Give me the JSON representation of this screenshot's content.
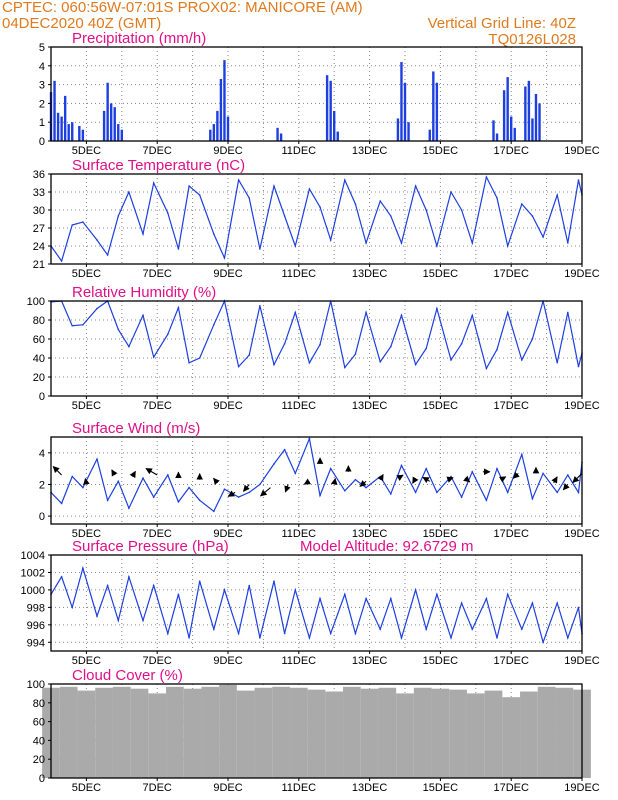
{
  "header": {
    "line1": "CPTEC:   060:56W-07:01S   PROX02: MANICORE (AM)",
    "line2_left": "04DEC2020 40Z (GMT)",
    "line2_right": "Vertical Grid Line: 40Z",
    "line3_right": "TQ0126L028"
  },
  "colors": {
    "header": "#e07a1e",
    "title": "#e0108a",
    "line": "#1d3fe0",
    "bar": "#1d3fe0",
    "cloud": "#aaaaaa",
    "wind_arrow": "#000000"
  },
  "x_axis": {
    "labels": [
      "5DEC",
      "7DEC",
      "9DEC",
      "11DEC",
      "13DEC",
      "15DEC",
      "17DEC",
      "19DEC"
    ]
  },
  "chart_data": [
    {
      "type": "bar",
      "title": "Precipitation (mm/h)",
      "ylim": [
        0,
        5
      ],
      "yticks": [
        "0",
        "1",
        "2",
        "3",
        "4",
        "5"
      ],
      "series": [
        {
          "x": [
            4.0,
            4.1,
            4.2,
            4.3,
            4.4,
            4.5,
            4.6,
            4.8,
            4.9,
            5.5,
            5.6,
            5.7,
            5.8,
            5.9,
            6.0,
            8.5,
            8.6,
            8.7,
            8.8,
            8.9,
            9.0,
            10.4,
            10.5,
            11.8,
            11.9,
            12.0,
            12.1,
            13.8,
            13.9,
            14.0,
            14.1,
            14.7,
            14.8,
            14.9,
            16.5,
            16.6,
            16.8,
            16.9,
            17.0,
            17.1,
            17.4,
            17.5,
            17.6,
            17.7,
            17.8
          ],
          "values": [
            2.6,
            3.2,
            1.5,
            1.3,
            2.4,
            0.9,
            1.0,
            0.8,
            0.6,
            1.6,
            3.1,
            2.0,
            1.8,
            0.9,
            0.6,
            0.6,
            0.9,
            1.6,
            3.3,
            4.3,
            1.3,
            0.7,
            0.4,
            3.5,
            3.2,
            1.6,
            0.5,
            1.2,
            4.2,
            3.1,
            1.0,
            0.6,
            3.7,
            3.1,
            1.1,
            0.4,
            2.7,
            3.4,
            1.3,
            0.7,
            2.9,
            3.2,
            1.2,
            2.5,
            2.0
          ]
        }
      ]
    },
    {
      "type": "line",
      "title": "Surface Temperature (nC)",
      "ylim": [
        21,
        36
      ],
      "yticks": [
        "21",
        "24",
        "27",
        "30",
        "33",
        "36"
      ],
      "series": [
        {
          "x": [
            4.0,
            4.3,
            4.6,
            4.9,
            5.3,
            5.6,
            5.9,
            6.2,
            6.6,
            6.9,
            7.3,
            7.6,
            7.9,
            8.2,
            8.6,
            8.9,
            9.3,
            9.6,
            9.9,
            10.3,
            10.6,
            10.9,
            11.3,
            11.6,
            11.9,
            12.3,
            12.6,
            12.9,
            13.3,
            13.6,
            13.9,
            14.3,
            14.6,
            14.9,
            15.3,
            15.6,
            15.9,
            16.3,
            16.6,
            16.9,
            17.3,
            17.6,
            17.9,
            18.3,
            18.6,
            18.9,
            19.0
          ],
          "values": [
            24.0,
            21.5,
            27.5,
            28.0,
            25.0,
            22.5,
            29.0,
            33.0,
            26.0,
            34.5,
            29.5,
            23.5,
            34.0,
            32.5,
            26.0,
            22.0,
            35.0,
            32.0,
            23.5,
            34.0,
            29.0,
            24.0,
            33.5,
            30.5,
            25.0,
            35.0,
            31.0,
            24.5,
            31.5,
            29.0,
            24.5,
            34.0,
            30.0,
            24.0,
            33.0,
            30.0,
            24.5,
            35.5,
            32.0,
            24.0,
            31.0,
            29.0,
            25.5,
            32.5,
            24.5,
            35.0,
            32.5
          ]
        }
      ]
    },
    {
      "type": "line",
      "title": "Relative Humidity (%)",
      "ylim": [
        0,
        100
      ],
      "yticks": [
        "0",
        "20",
        "40",
        "60",
        "80",
        "100"
      ],
      "series": [
        {
          "x": [
            4.0,
            4.3,
            4.6,
            4.9,
            5.3,
            5.6,
            5.9,
            6.2,
            6.6,
            6.9,
            7.3,
            7.6,
            7.9,
            8.2,
            8.6,
            8.9,
            9.3,
            9.6,
            9.9,
            10.3,
            10.6,
            10.9,
            11.3,
            11.6,
            11.9,
            12.3,
            12.6,
            12.9,
            13.3,
            13.6,
            13.9,
            14.3,
            14.6,
            14.9,
            15.3,
            15.6,
            15.9,
            16.3,
            16.6,
            16.9,
            17.3,
            17.6,
            17.9,
            18.3,
            18.6,
            18.9,
            19.0
          ],
          "values": [
            99.0,
            100.0,
            74.0,
            75.0,
            92.0,
            100.0,
            70.0,
            52.0,
            85.0,
            41.0,
            65.0,
            93.0,
            35.0,
            40.0,
            75.0,
            100.0,
            31.0,
            43.0,
            95.0,
            33.0,
            55.0,
            88.0,
            35.0,
            54.0,
            100.0,
            30.0,
            44.0,
            88.0,
            36.0,
            52.0,
            85.0,
            33.0,
            50.0,
            92.0,
            38.0,
            55.0,
            85.0,
            29.0,
            49.0,
            88.0,
            38.0,
            60.0,
            100.0,
            35.0,
            88.0,
            31.0,
            45.0
          ]
        }
      ]
    },
    {
      "type": "line",
      "title": "Surface Wind (m/s)",
      "ylim": [
        -0.5,
        5.0
      ],
      "yticks": [
        "0",
        "2",
        "4"
      ],
      "series": [
        {
          "x": [
            4.0,
            4.3,
            4.6,
            4.9,
            5.3,
            5.6,
            5.9,
            6.2,
            6.6,
            6.9,
            7.3,
            7.6,
            7.9,
            8.2,
            8.6,
            8.9,
            9.3,
            9.6,
            9.9,
            10.3,
            10.6,
            10.9,
            11.3,
            11.6,
            11.9,
            12.3,
            12.6,
            12.9,
            13.3,
            13.6,
            13.9,
            14.3,
            14.6,
            14.9,
            15.3,
            15.6,
            15.9,
            16.3,
            16.6,
            16.9,
            17.3,
            17.6,
            17.9,
            18.3,
            18.6,
            18.9,
            19.0
          ],
          "values": [
            1.5,
            0.8,
            2.5,
            1.8,
            3.6,
            1.0,
            2.2,
            0.5,
            2.4,
            1.2,
            2.6,
            0.9,
            1.8,
            1.0,
            0.3,
            1.7,
            1.2,
            1.5,
            2.0,
            3.3,
            4.2,
            2.7,
            4.9,
            1.3,
            3.0,
            1.6,
            2.3,
            1.8,
            2.5,
            1.4,
            3.2,
            1.5,
            3.0,
            1.5,
            2.5,
            1.2,
            2.8,
            1.0,
            3.0,
            1.5,
            3.9,
            1.1,
            2.7,
            1.5,
            2.6,
            1.5,
            3.4
          ]
        }
      ],
      "wind_arrows": [
        {
          "x": 4.3,
          "y": 2.6,
          "dir_deg": 135,
          "speed": 1.2
        },
        {
          "x": 5.0,
          "y": 2.0,
          "dir_deg": 100,
          "speed": 0.6
        },
        {
          "x": 5.8,
          "y": 2.6,
          "dir_deg": 120,
          "speed": 0.6
        },
        {
          "x": 6.3,
          "y": 2.5,
          "dir_deg": 60,
          "speed": 0.6
        },
        {
          "x": 7.0,
          "y": 2.6,
          "dir_deg": 150,
          "speed": 1.3
        },
        {
          "x": 7.6,
          "y": 2.4,
          "dir_deg": 90,
          "speed": 0.6
        },
        {
          "x": 8.2,
          "y": 2.3,
          "dir_deg": 90,
          "speed": 0.6
        },
        {
          "x": 8.7,
          "y": 2.1,
          "dir_deg": 130,
          "speed": 0.6
        },
        {
          "x": 9.2,
          "y": 1.5,
          "dir_deg": 210,
          "speed": 0.8
        },
        {
          "x": 9.6,
          "y": 2.0,
          "dir_deg": 230,
          "speed": 0.9
        },
        {
          "x": 10.2,
          "y": 1.8,
          "dir_deg": 220,
          "speed": 1.3
        },
        {
          "x": 10.7,
          "y": 2.0,
          "dir_deg": 250,
          "speed": 0.8
        },
        {
          "x": 11.3,
          "y": 2.2,
          "dir_deg": 210,
          "speed": 0.6
        },
        {
          "x": 11.6,
          "y": 3.3,
          "dir_deg": 90,
          "speed": 0.6
        },
        {
          "x": 12.0,
          "y": 2.0,
          "dir_deg": 80,
          "speed": 0.6
        },
        {
          "x": 12.4,
          "y": 2.8,
          "dir_deg": 90,
          "speed": 0.6
        },
        {
          "x": 12.9,
          "y": 2.2,
          "dir_deg": 220,
          "speed": 0.8
        },
        {
          "x": 13.3,
          "y": 2.3,
          "dir_deg": 60,
          "speed": 0.6
        },
        {
          "x": 13.8,
          "y": 2.4,
          "dir_deg": 30,
          "speed": 0.6
        },
        {
          "x": 14.3,
          "y": 2.4,
          "dir_deg": 240,
          "speed": 0.6
        },
        {
          "x": 14.7,
          "y": 2.2,
          "dir_deg": 150,
          "speed": 0.8
        },
        {
          "x": 15.2,
          "y": 2.3,
          "dir_deg": 20,
          "speed": 0.6
        },
        {
          "x": 15.7,
          "y": 2.4,
          "dir_deg": 320,
          "speed": 0.6
        },
        {
          "x": 16.2,
          "y": 2.8,
          "dir_deg": 0,
          "speed": 0.7
        },
        {
          "x": 16.7,
          "y": 2.3,
          "dir_deg": 30,
          "speed": 0.6
        },
        {
          "x": 17.2,
          "y": 2.7,
          "dir_deg": 225,
          "speed": 0.7
        },
        {
          "x": 17.7,
          "y": 2.7,
          "dir_deg": 90,
          "speed": 0.6
        },
        {
          "x": 18.2,
          "y": 2.1,
          "dir_deg": 60,
          "speed": 0.7
        },
        {
          "x": 18.6,
          "y": 2.0,
          "dir_deg": 230,
          "speed": 0.7
        },
        {
          "x": 19.0,
          "y": 2.7,
          "dir_deg": 225,
          "speed": 1.3
        }
      ]
    },
    {
      "type": "line",
      "title": "Surface Pressure (hPa)",
      "annotation": "Model Altitude: 92.6729  m",
      "ylim": [
        993.0,
        1004.0
      ],
      "yticks": [
        "994",
        "996",
        "998",
        "1000",
        "1002",
        "1004"
      ],
      "series": [
        {
          "x": [
            4.0,
            4.3,
            4.6,
            4.9,
            5.3,
            5.6,
            5.9,
            6.2,
            6.6,
            6.9,
            7.3,
            7.6,
            7.9,
            8.2,
            8.6,
            8.9,
            9.3,
            9.6,
            9.9,
            10.3,
            10.6,
            10.9,
            11.3,
            11.6,
            11.9,
            12.3,
            12.6,
            12.9,
            13.3,
            13.6,
            13.9,
            14.3,
            14.6,
            14.9,
            15.3,
            15.6,
            15.9,
            16.3,
            16.6,
            16.9,
            17.3,
            17.6,
            17.9,
            18.3,
            18.6,
            18.9,
            19.0
          ],
          "values": [
            999.5,
            1001.5,
            998.0,
            1002.5,
            997.0,
            1000.5,
            996.5,
            1001.5,
            996.5,
            1000.5,
            995.0,
            999.5,
            994.5,
            1001.0,
            995.5,
            1000.0,
            995.0,
            1000.5,
            994.5,
            1001.0,
            995.0,
            1000.0,
            994.5,
            999.0,
            995.0,
            999.5,
            995.0,
            999.0,
            995.5,
            999.0,
            994.5,
            1000.0,
            995.5,
            999.5,
            994.5,
            998.5,
            995.5,
            999.0,
            994.5,
            999.5,
            995.5,
            998.5,
            994.0,
            998.5,
            994.5,
            998.0,
            995.0
          ]
        }
      ]
    },
    {
      "type": "bar",
      "title": "Cloud Cover (%)",
      "ylim": [
        0,
        100
      ],
      "yticks": [
        "0",
        "20",
        "40",
        "60",
        "80",
        "100"
      ],
      "series": [
        {
          "x": [
            4.0,
            4.5,
            5.0,
            5.5,
            6.0,
            6.5,
            7.0,
            7.5,
            8.0,
            8.5,
            9.0,
            9.5,
            10.0,
            10.5,
            11.0,
            11.5,
            12.0,
            12.5,
            13.0,
            13.5,
            14.0,
            14.5,
            15.0,
            15.5,
            16.0,
            16.5,
            17.0,
            17.5,
            18.0,
            18.5,
            19.0
          ],
          "values": [
            96,
            97,
            93,
            96,
            97,
            95,
            90,
            97,
            95,
            97,
            99,
            93,
            96,
            97,
            96,
            94,
            92,
            97,
            95,
            96,
            90,
            96,
            95,
            94,
            90,
            93,
            86,
            92,
            97,
            96,
            94
          ]
        }
      ]
    }
  ]
}
